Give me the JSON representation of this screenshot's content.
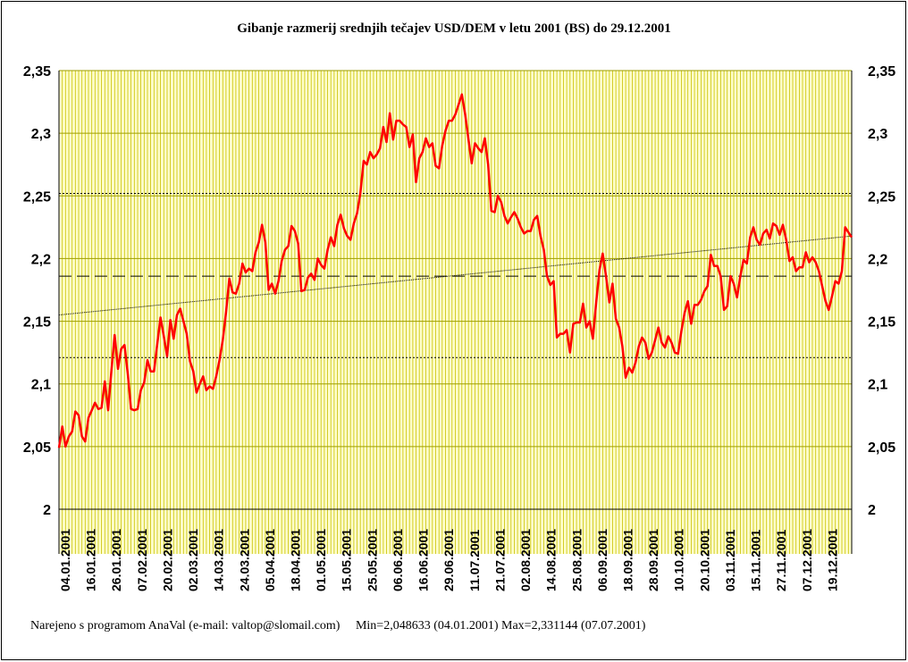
{
  "chart_data": {
    "type": "line",
    "title": "Gibanje razmerij srednjih tečajev USD/DEM v letu 2001 (BS) do 29.12.2001",
    "ylim": [
      2,
      2.35
    ],
    "y_ticks": [
      "2",
      "2,05",
      "2,1",
      "2,15",
      "2,2",
      "2,25",
      "2,3",
      "2,35"
    ],
    "x_ticks": [
      "04.01.2001",
      "16.01.2001",
      "26.01.2001",
      "07.02.2001",
      "20.02.2001",
      "02.03.2001",
      "14.03.2001",
      "24.03.2001",
      "05.04.2001",
      "18.04.2001",
      "01.05.2001",
      "15.05.2001",
      "25.05.2001",
      "06.06.2001",
      "16.06.2001",
      "29.06.2001",
      "11.07.2001",
      "21.07.2001",
      "02.08.2001",
      "14.08.2001",
      "25.08.2001",
      "06.09.2001",
      "18.09.2001",
      "28.09.2001",
      "10.10.2001",
      "20.10.2001",
      "03.11.2001",
      "15.11.2001",
      "27.11.2001",
      "07.12.2001",
      "19.12.2001"
    ],
    "grid": true,
    "reference_lines": {
      "mean": 2.186,
      "upper": 2.252,
      "lower": 2.121,
      "trend_start": 2.155,
      "trend_end": 2.218
    },
    "series": [
      {
        "name": "",
        "color": "#ff0000",
        "values": [
          2.049,
          2.066,
          2.05,
          2.058,
          2.062,
          2.078,
          2.075,
          2.058,
          2.054,
          2.073,
          2.079,
          2.085,
          2.08,
          2.081,
          2.102,
          2.079,
          2.11,
          2.139,
          2.112,
          2.128,
          2.131,
          2.108,
          2.08,
          2.079,
          2.08,
          2.095,
          2.101,
          2.119,
          2.11,
          2.11,
          2.132,
          2.153,
          2.138,
          2.122,
          2.151,
          2.136,
          2.155,
          2.16,
          2.15,
          2.14,
          2.118,
          2.11,
          2.093,
          2.1,
          2.106,
          2.095,
          2.098,
          2.096,
          2.106,
          2.119,
          2.135,
          2.157,
          2.184,
          2.173,
          2.172,
          2.18,
          2.196,
          2.189,
          2.192,
          2.19,
          2.205,
          2.213,
          2.227,
          2.213,
          2.175,
          2.18,
          2.172,
          2.182,
          2.198,
          2.207,
          2.21,
          2.226,
          2.222,
          2.212,
          2.174,
          2.175,
          2.185,
          2.188,
          2.183,
          2.2,
          2.195,
          2.192,
          2.207,
          2.217,
          2.21,
          2.227,
          2.235,
          2.224,
          2.218,
          2.215,
          2.228,
          2.236,
          2.252,
          2.278,
          2.275,
          2.285,
          2.28,
          2.283,
          2.288,
          2.305,
          2.293,
          2.316,
          2.295,
          2.31,
          2.31,
          2.307,
          2.305,
          2.289,
          2.299,
          2.261,
          2.28,
          2.285,
          2.296,
          2.289,
          2.292,
          2.274,
          2.272,
          2.29,
          2.302,
          2.31,
          2.31,
          2.315,
          2.323,
          2.331,
          2.315,
          2.295,
          2.276,
          2.292,
          2.288,
          2.285,
          2.296,
          2.275,
          2.238,
          2.237,
          2.25,
          2.245,
          2.234,
          2.228,
          2.233,
          2.237,
          2.232,
          2.225,
          2.22,
          2.222,
          2.222,
          2.231,
          2.234,
          2.218,
          2.207,
          2.186,
          2.179,
          2.182,
          2.137,
          2.14,
          2.14,
          2.143,
          2.125,
          2.148,
          2.149,
          2.149,
          2.164,
          2.145,
          2.15,
          2.136,
          2.165,
          2.191,
          2.204,
          2.186,
          2.165,
          2.18,
          2.152,
          2.145,
          2.13,
          2.105,
          2.113,
          2.109,
          2.117,
          2.13,
          2.137,
          2.133,
          2.12,
          2.125,
          2.135,
          2.145,
          2.133,
          2.129,
          2.138,
          2.133,
          2.125,
          2.124,
          2.142,
          2.157,
          2.166,
          2.148,
          2.163,
          2.163,
          2.167,
          2.174,
          2.178,
          2.203,
          2.194,
          2.194,
          2.186,
          2.159,
          2.162,
          2.186,
          2.18,
          2.169,
          2.186,
          2.199,
          2.196,
          2.217,
          2.225,
          2.215,
          2.211,
          2.22,
          2.223,
          2.216,
          2.228,
          2.226,
          2.219,
          2.227,
          2.215,
          2.198,
          2.201,
          2.19,
          2.193,
          2.193,
          2.205,
          2.197,
          2.201,
          2.197,
          2.19,
          2.178,
          2.166,
          2.159,
          2.17,
          2.182,
          2.18,
          2.19,
          2.225,
          2.221,
          2.217
        ]
      }
    ]
  },
  "footer": "Narejeno s programom AnaVal (e-mail: valtop@slomail.com)     Min=2,048633 (04.01.2001) Max=2,331144 (07.07.2001)"
}
